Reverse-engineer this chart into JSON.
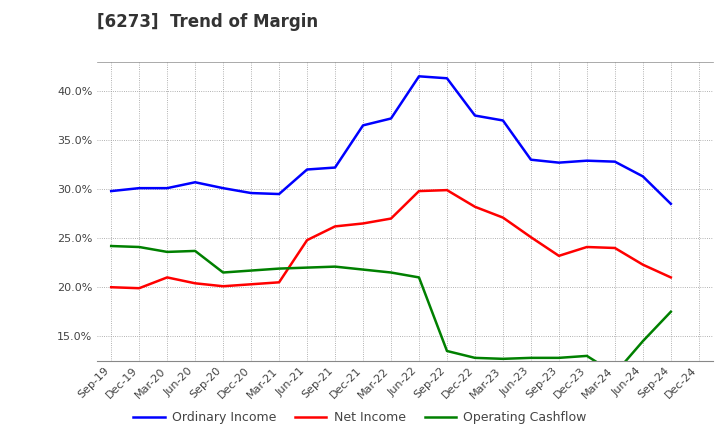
{
  "title": "[6273]  Trend of Margin",
  "x_labels": [
    "Sep-19",
    "Dec-19",
    "Mar-20",
    "Jun-20",
    "Sep-20",
    "Dec-20",
    "Mar-21",
    "Jun-21",
    "Sep-21",
    "Dec-21",
    "Mar-22",
    "Jun-22",
    "Sep-22",
    "Dec-22",
    "Mar-23",
    "Jun-23",
    "Sep-23",
    "Dec-23",
    "Mar-24",
    "Jun-24",
    "Sep-24",
    "Dec-24"
  ],
  "ordinary_income": [
    29.8,
    30.1,
    30.1,
    30.7,
    30.1,
    29.6,
    29.5,
    32.0,
    32.2,
    36.5,
    37.2,
    41.5,
    41.3,
    37.5,
    37.0,
    33.0,
    32.7,
    32.9,
    32.8,
    31.3,
    28.5,
    null
  ],
  "net_income": [
    20.0,
    19.9,
    21.0,
    20.4,
    20.1,
    20.3,
    20.5,
    24.8,
    26.2,
    26.5,
    27.0,
    29.8,
    29.9,
    28.2,
    27.1,
    25.1,
    23.2,
    24.1,
    24.0,
    22.3,
    21.0,
    null
  ],
  "operating_cashflow": [
    24.2,
    24.1,
    23.6,
    23.7,
    21.5,
    21.7,
    21.9,
    22.0,
    22.1,
    21.8,
    21.5,
    21.0,
    13.5,
    12.8,
    12.7,
    12.8,
    12.8,
    13.0,
    11.2,
    14.5,
    17.5,
    null
  ],
  "ordinary_income_color": "#0000FF",
  "net_income_color": "#FF0000",
  "operating_cashflow_color": "#008000",
  "ylim": [
    12.5,
    43.0
  ],
  "yticks": [
    15.0,
    20.0,
    25.0,
    30.0,
    35.0,
    40.0
  ],
  "background_color": "#FFFFFF",
  "plot_bg_color": "#FFFFFF",
  "grid_color": "#999999",
  "legend_labels": [
    "Ordinary Income",
    "Net Income",
    "Operating Cashflow"
  ],
  "line_width": 1.8,
  "title_color": "#333333",
  "title_fontsize": 12,
  "tick_fontsize": 8,
  "legend_fontsize": 9
}
